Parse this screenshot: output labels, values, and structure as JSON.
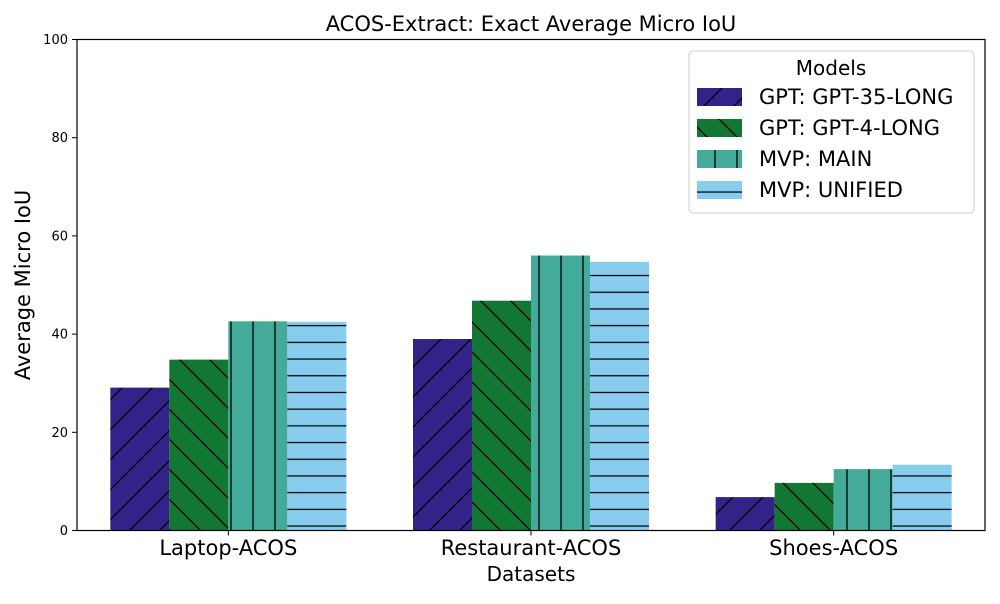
{
  "chart_data": {
    "type": "bar",
    "title": "ACOS-Extract: Exact Average Micro IoU",
    "xlabel": "Datasets",
    "ylabel": "Average Micro IoU",
    "ylim": [
      0,
      100
    ],
    "yticks": [
      0,
      20,
      40,
      60,
      80,
      100
    ],
    "grid": false,
    "categories": [
      "Laptop-ACOS",
      "Restaurant-ACOS",
      "Shoes-ACOS"
    ],
    "legend": {
      "title": "Models",
      "placement": "top-right"
    },
    "series": [
      {
        "name": "GPT: GPT-35-LONG",
        "color": "#332288",
        "hatch": "forward-diagonal",
        "values": [
          29.1,
          39.0,
          6.8
        ]
      },
      {
        "name": "GPT: GPT-4-LONG",
        "color": "#117733",
        "hatch": "back-diagonal",
        "values": [
          34.8,
          46.8,
          9.7
        ]
      },
      {
        "name": "MVP: MAIN",
        "color": "#44AA99",
        "hatch": "vertical",
        "values": [
          42.6,
          56.0,
          12.5
        ]
      },
      {
        "name": "MVP: UNIFIED",
        "color": "#88CCEE",
        "hatch": "horizontal",
        "values": [
          42.5,
          54.7,
          13.4
        ]
      }
    ]
  }
}
